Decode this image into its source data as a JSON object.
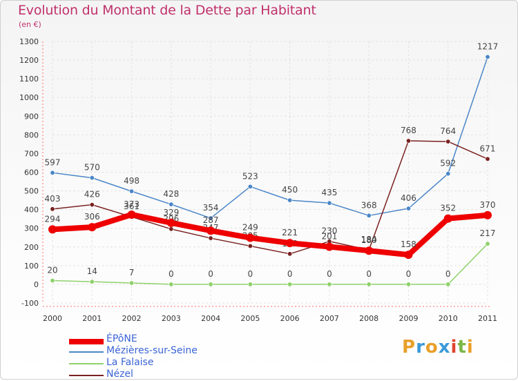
{
  "title": "Evolution du Montant de la Dette par Habitant",
  "subtitle": "(en €)",
  "logo": {
    "letters": [
      "P",
      "r",
      "o",
      "x",
      "i",
      "t",
      "i"
    ],
    "colors": [
      "#e8a02a",
      "#3a9ad9",
      "#e8a02a",
      "#3a9ad9",
      "#e0442e",
      "#7ab648",
      "#e8a02a"
    ]
  },
  "chart_data": {
    "type": "line",
    "x": [
      "2000",
      "2001",
      "2002",
      "2003",
      "2004",
      "2005",
      "2006",
      "2007",
      "2008",
      "2009",
      "2010",
      "2011"
    ],
    "ylim": [
      -100,
      1300
    ],
    "yticks": [
      -100,
      0,
      100,
      200,
      300,
      400,
      500,
      600,
      700,
      800,
      900,
      1000,
      1100,
      1200,
      1300
    ],
    "legend_position": "bottom-left",
    "series": [
      {
        "name": "Mézières-sur-Seine",
        "color": "#4a86c8",
        "values": [
          597,
          570,
          498,
          428,
          354,
          523,
          450,
          435,
          368,
          406,
          592,
          1217
        ],
        "labels": [
          "597",
          "570",
          "498",
          "428",
          "354",
          "523",
          "450",
          "435",
          "368",
          "406",
          "592",
          "1217"
        ]
      },
      {
        "name": "Nézel",
        "color": "#7a2020",
        "values": [
          403,
          426,
          361,
          296,
          247,
          205,
          163,
          230,
          184,
          768,
          764,
          671
        ],
        "labels": [
          "403",
          "426",
          "361",
          "296",
          "247",
          "205",
          "163",
          "230",
          "184",
          "768",
          "764",
          "671"
        ]
      },
      {
        "name": "La Falaise",
        "color": "#8ed16a",
        "values": [
          20,
          14,
          7,
          0,
          0,
          0,
          0,
          0,
          0,
          0,
          0,
          217
        ],
        "labels": [
          "20",
          "14",
          "7",
          "0",
          "0",
          "0",
          "0",
          "0",
          "0",
          "0",
          "0",
          "217"
        ]
      },
      {
        "name": "ÉPôNE",
        "color": "#ee0000",
        "values": [
          294,
          306,
          373,
          329,
          287,
          249,
          221,
          201,
          180,
          158,
          352,
          370
        ],
        "labels": [
          "294",
          "306",
          "373",
          "329",
          "287",
          "249",
          "221",
          "201",
          "180",
          "158",
          "352",
          "370"
        ]
      }
    ]
  },
  "legend": [
    {
      "name": "ÉPôNE",
      "color": "#ee0000"
    },
    {
      "name": "Mézières-sur-Seine",
      "color": "#4a86c8"
    },
    {
      "name": "La Falaise",
      "color": "#8ed16a"
    },
    {
      "name": "Nézel",
      "color": "#7a2020"
    }
  ]
}
